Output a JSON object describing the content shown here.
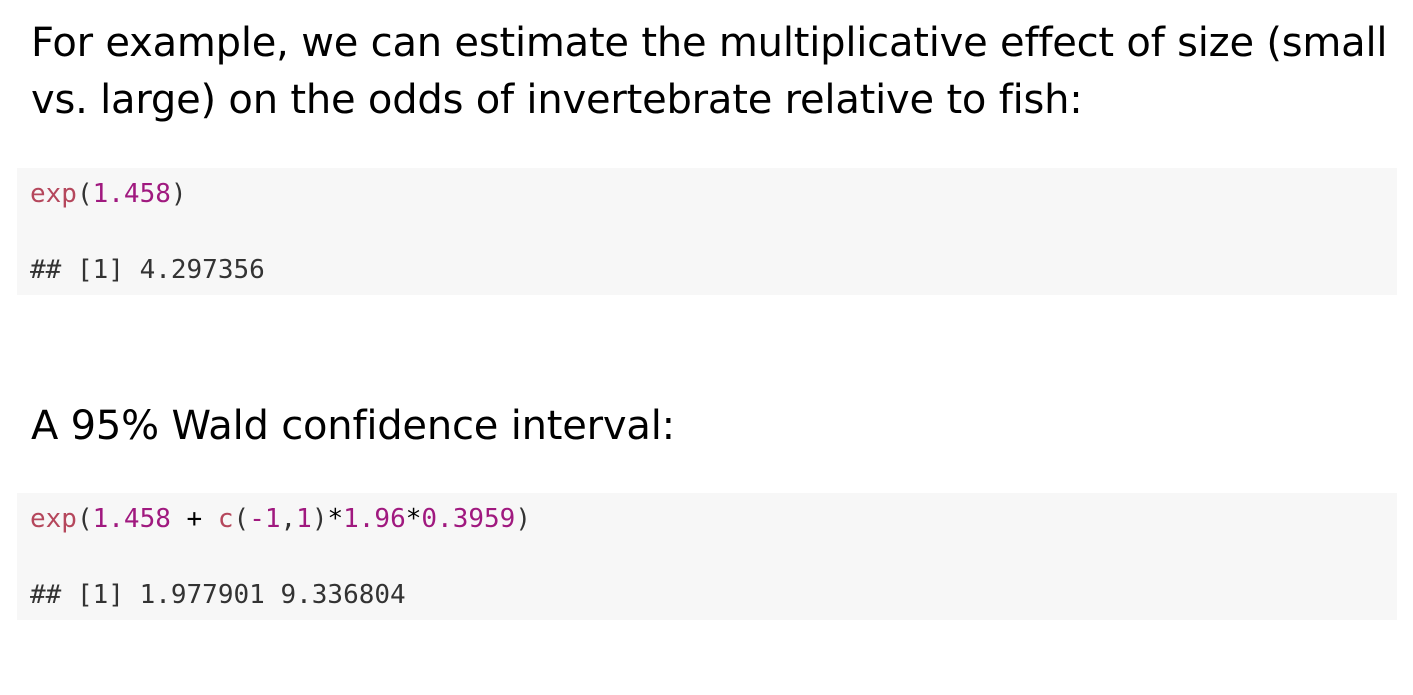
{
  "paragraph_1": "For example, we can estimate the multiplicative effect of size (small vs. large) on the odds of invertebrate relative to fish:",
  "code_block_1": {
    "input": {
      "fn": "exp",
      "open": "(",
      "num1": "1.458",
      "close": ")"
    },
    "output": "## [1] 4.297356"
  },
  "paragraph_2": "A 95% Wald confidence interval:",
  "code_block_2": {
    "input": {
      "fn": "exp",
      "open": "(",
      "num1": "1.458",
      "plus": " + ",
      "fn2": "c",
      "open2": "(",
      "num2": "-1",
      "comma": ",",
      "num3": "1",
      "close2": ")",
      "mul1": "*",
      "num4": "1.96",
      "mul2": "*",
      "num5": "0.3959",
      "close": ")"
    },
    "output": "## [1] 1.977901 9.336804"
  },
  "colors": {
    "code_background": "#f7f7f7",
    "function_color": "#b5475c",
    "number_color": "#a0197f",
    "output_color": "#333333"
  }
}
